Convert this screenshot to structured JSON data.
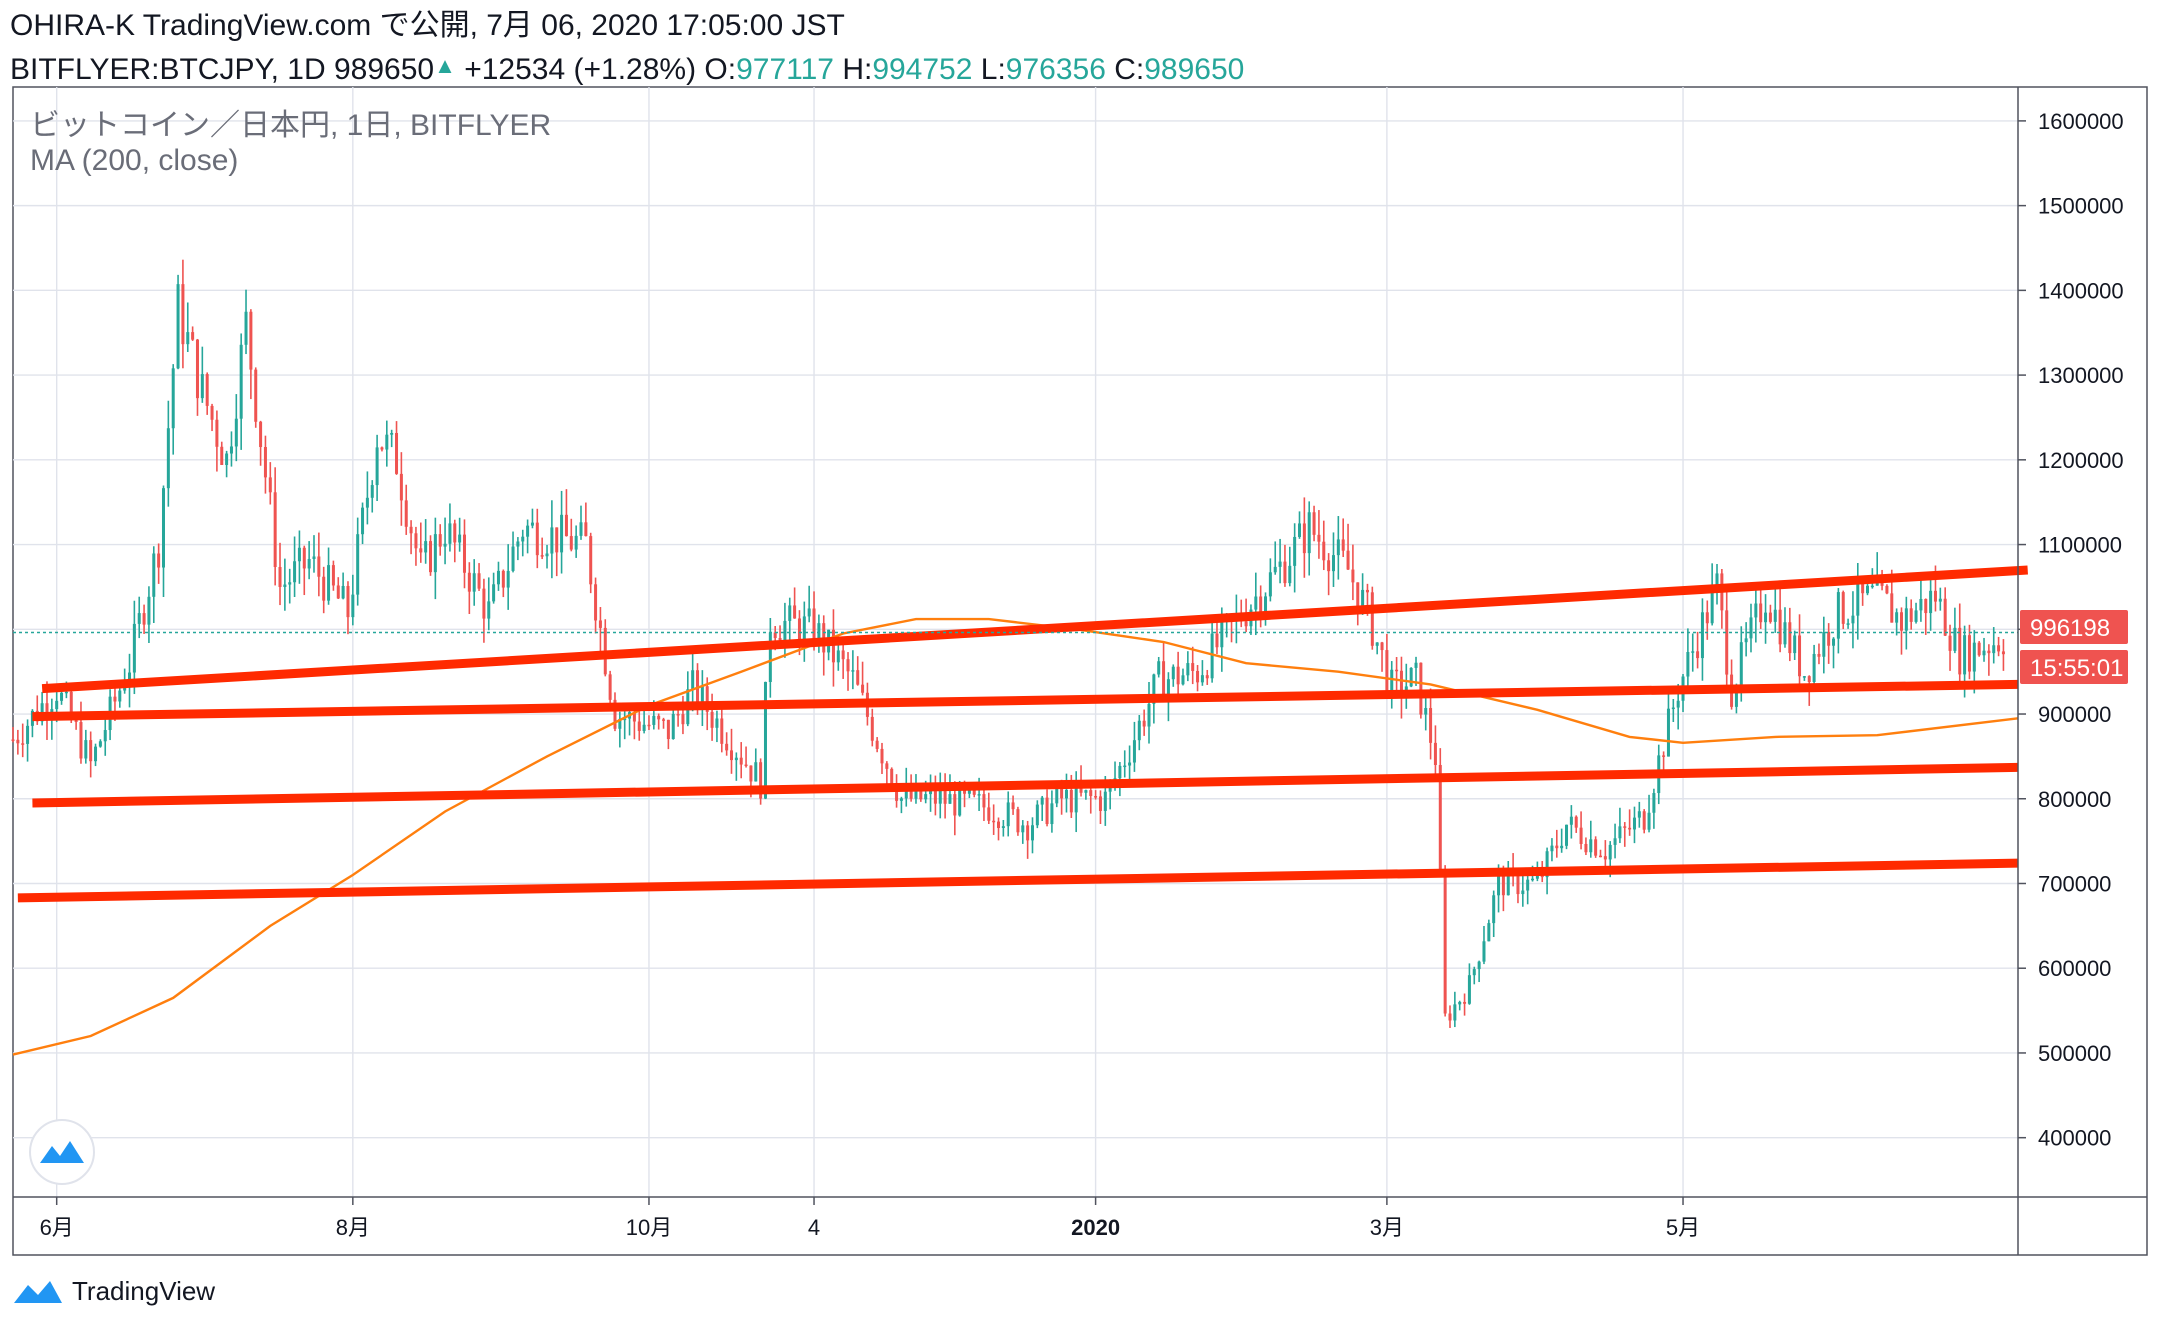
{
  "header": {
    "line1": "OHIRA-K TradingView.com で公開, 7月 06, 2020 17:05:00 JST",
    "symbol": "BITFLYER:BTCJPY, 1D 989650",
    "change": "+12534 (+1.28%)",
    "o_label": "O:",
    "o_value": "977117",
    "h_label": "H:",
    "h_value": "994752",
    "l_label": "L:",
    "l_value": "976356",
    "c_label": "C:",
    "c_value": "989650"
  },
  "legend": {
    "title": "ビットコイン／日本円, 1日, BITFLYER",
    "indicator": "MA (200, close)"
  },
  "price_badges": {
    "last_price": "996198",
    "countdown": "15:55:01"
  },
  "footer": {
    "brand": "TradingView"
  },
  "colors": {
    "up": "#26a69a",
    "down": "#ef5350",
    "ma": "#ff7f0e",
    "trendline": "#ff2a00",
    "badge": "#ef5350"
  },
  "chart_data": {
    "type": "candlestick",
    "symbol": "BITFLYER:BTCJPY",
    "interval": "1D",
    "y_axis": {
      "ticks": [
        400000,
        500000,
        600000,
        700000,
        800000,
        900000,
        1000000,
        1100000,
        1200000,
        1300000,
        1400000,
        1500000,
        1600000
      ],
      "tick_labels": [
        "400000",
        "500000",
        "600000",
        "700000",
        "800000",
        "900000",
        "1000000",
        "1100000",
        "1200000",
        "1300000",
        "1400000",
        "1500000",
        "1600000"
      ],
      "range": [
        330000,
        1640000
      ]
    },
    "x_axis": {
      "ticks": [
        {
          "label": "6月",
          "date": "2019-06-01"
        },
        {
          "label": "8月",
          "date": "2019-08-01"
        },
        {
          "label": "10月",
          "date": "2019-10-01"
        },
        {
          "label": "4",
          "date": "2019-11-04"
        },
        {
          "label": "2020",
          "date": "2020-01-01",
          "bold": true
        },
        {
          "label": "3月",
          "date": "2020-03-01"
        },
        {
          "label": "5月",
          "date": "2020-05-01"
        }
      ],
      "range": [
        "2019-05-23",
        "2020-07-09"
      ]
    },
    "price_anchors": [
      {
        "date": "2019-05-23",
        "price": 870000
      },
      {
        "date": "2019-06-01",
        "price": 930000
      },
      {
        "date": "2019-06-08",
        "price": 840000
      },
      {
        "date": "2019-06-16",
        "price": 960000
      },
      {
        "date": "2019-06-22",
        "price": 1100000
      },
      {
        "date": "2019-06-26",
        "price": 1380000
      },
      {
        "date": "2019-07-01",
        "price": 1280000
      },
      {
        "date": "2019-07-06",
        "price": 1200000
      },
      {
        "date": "2019-07-10",
        "price": 1360000
      },
      {
        "date": "2019-07-17",
        "price": 1050000
      },
      {
        "date": "2019-07-23",
        "price": 1080000
      },
      {
        "date": "2019-07-31",
        "price": 1020000
      },
      {
        "date": "2019-08-06",
        "price": 1230000
      },
      {
        "date": "2019-08-10",
        "price": 1200000
      },
      {
        "date": "2019-08-15",
        "price": 1070000
      },
      {
        "date": "2019-08-20",
        "price": 1120000
      },
      {
        "date": "2019-08-29",
        "price": 1020000
      },
      {
        "date": "2019-09-05",
        "price": 1120000
      },
      {
        "date": "2019-09-18",
        "price": 1100000
      },
      {
        "date": "2019-09-24",
        "price": 900000
      },
      {
        "date": "2019-10-05",
        "price": 880000
      },
      {
        "date": "2019-10-10",
        "price": 930000
      },
      {
        "date": "2019-10-24",
        "price": 820000
      },
      {
        "date": "2019-10-26",
        "price": 1010000
      },
      {
        "date": "2019-11-04",
        "price": 1000000
      },
      {
        "date": "2019-11-12",
        "price": 940000
      },
      {
        "date": "2019-11-22",
        "price": 800000
      },
      {
        "date": "2019-11-29",
        "price": 800000
      },
      {
        "date": "2019-12-10",
        "price": 790000
      },
      {
        "date": "2019-12-18",
        "price": 770000
      },
      {
        "date": "2019-12-25",
        "price": 800000
      },
      {
        "date": "2020-01-03",
        "price": 800000
      },
      {
        "date": "2020-01-08",
        "price": 860000
      },
      {
        "date": "2020-01-14",
        "price": 940000
      },
      {
        "date": "2020-01-22",
        "price": 950000
      },
      {
        "date": "2020-01-30",
        "price": 1010000
      },
      {
        "date": "2020-02-09",
        "price": 1080000
      },
      {
        "date": "2020-02-14",
        "price": 1120000
      },
      {
        "date": "2020-02-22",
        "price": 1070000
      },
      {
        "date": "2020-02-26",
        "price": 1020000
      },
      {
        "date": "2020-03-02",
        "price": 930000
      },
      {
        "date": "2020-03-07",
        "price": 940000
      },
      {
        "date": "2020-03-11",
        "price": 850000
      },
      {
        "date": "2020-03-13",
        "price": 540000
      },
      {
        "date": "2020-03-18",
        "price": 580000
      },
      {
        "date": "2020-03-24",
        "price": 700000
      },
      {
        "date": "2020-04-01",
        "price": 700000
      },
      {
        "date": "2020-04-07",
        "price": 770000
      },
      {
        "date": "2020-04-15",
        "price": 740000
      },
      {
        "date": "2020-04-23",
        "price": 780000
      },
      {
        "date": "2020-04-30",
        "price": 930000
      },
      {
        "date": "2020-05-08",
        "price": 1050000
      },
      {
        "date": "2020-05-11",
        "price": 930000
      },
      {
        "date": "2020-05-18",
        "price": 1040000
      },
      {
        "date": "2020-05-26",
        "price": 950000
      },
      {
        "date": "2020-06-02",
        "price": 1020000
      },
      {
        "date": "2020-06-10",
        "price": 1040000
      },
      {
        "date": "2020-06-15",
        "price": 1010000
      },
      {
        "date": "2020-06-22",
        "price": 1040000
      },
      {
        "date": "2020-06-27",
        "price": 970000
      },
      {
        "date": "2020-07-06",
        "price": 989650
      }
    ],
    "moving_average": {
      "name": "MA (200, close)",
      "points": [
        {
          "date": "2019-05-23",
          "value": 498000
        },
        {
          "date": "2019-06-08",
          "value": 520000
        },
        {
          "date": "2019-06-25",
          "value": 565000
        },
        {
          "date": "2019-07-15",
          "value": 650000
        },
        {
          "date": "2019-08-01",
          "value": 710000
        },
        {
          "date": "2019-08-20",
          "value": 785000
        },
        {
          "date": "2019-09-10",
          "value": 850000
        },
        {
          "date": "2019-10-01",
          "value": 910000
        },
        {
          "date": "2019-10-20",
          "value": 950000
        },
        {
          "date": "2019-11-10",
          "value": 995000
        },
        {
          "date": "2019-11-25",
          "value": 1012000
        },
        {
          "date": "2019-12-10",
          "value": 1012000
        },
        {
          "date": "2019-12-28",
          "value": 1000000
        },
        {
          "date": "2020-01-15",
          "value": 985000
        },
        {
          "date": "2020-02-01",
          "value": 960000
        },
        {
          "date": "2020-02-20",
          "value": 950000
        },
        {
          "date": "2020-03-10",
          "value": 935000
        },
        {
          "date": "2020-04-01",
          "value": 905000
        },
        {
          "date": "2020-04-20",
          "value": 873000
        },
        {
          "date": "2020-05-01",
          "value": 866000
        },
        {
          "date": "2020-05-20",
          "value": 873000
        },
        {
          "date": "2020-06-10",
          "value": 875000
        },
        {
          "date": "2020-07-09",
          "value": 895000
        }
      ]
    },
    "trendlines": [
      {
        "start": {
          "date": "2019-05-29",
          "price": 930000
        },
        "end": {
          "date": "2020-07-11",
          "price": 1070000
        }
      },
      {
        "start": {
          "date": "2019-05-27",
          "price": 897000
        },
        "end": {
          "date": "2020-07-09",
          "price": 935000
        }
      },
      {
        "start": {
          "date": "2019-05-27",
          "price": 795000
        },
        "end": {
          "date": "2020-07-09",
          "price": 837000
        }
      },
      {
        "start": {
          "date": "2019-05-24",
          "price": 683000
        },
        "end": {
          "date": "2020-07-09",
          "price": 724000
        }
      }
    ],
    "last_price_line": 996198
  }
}
